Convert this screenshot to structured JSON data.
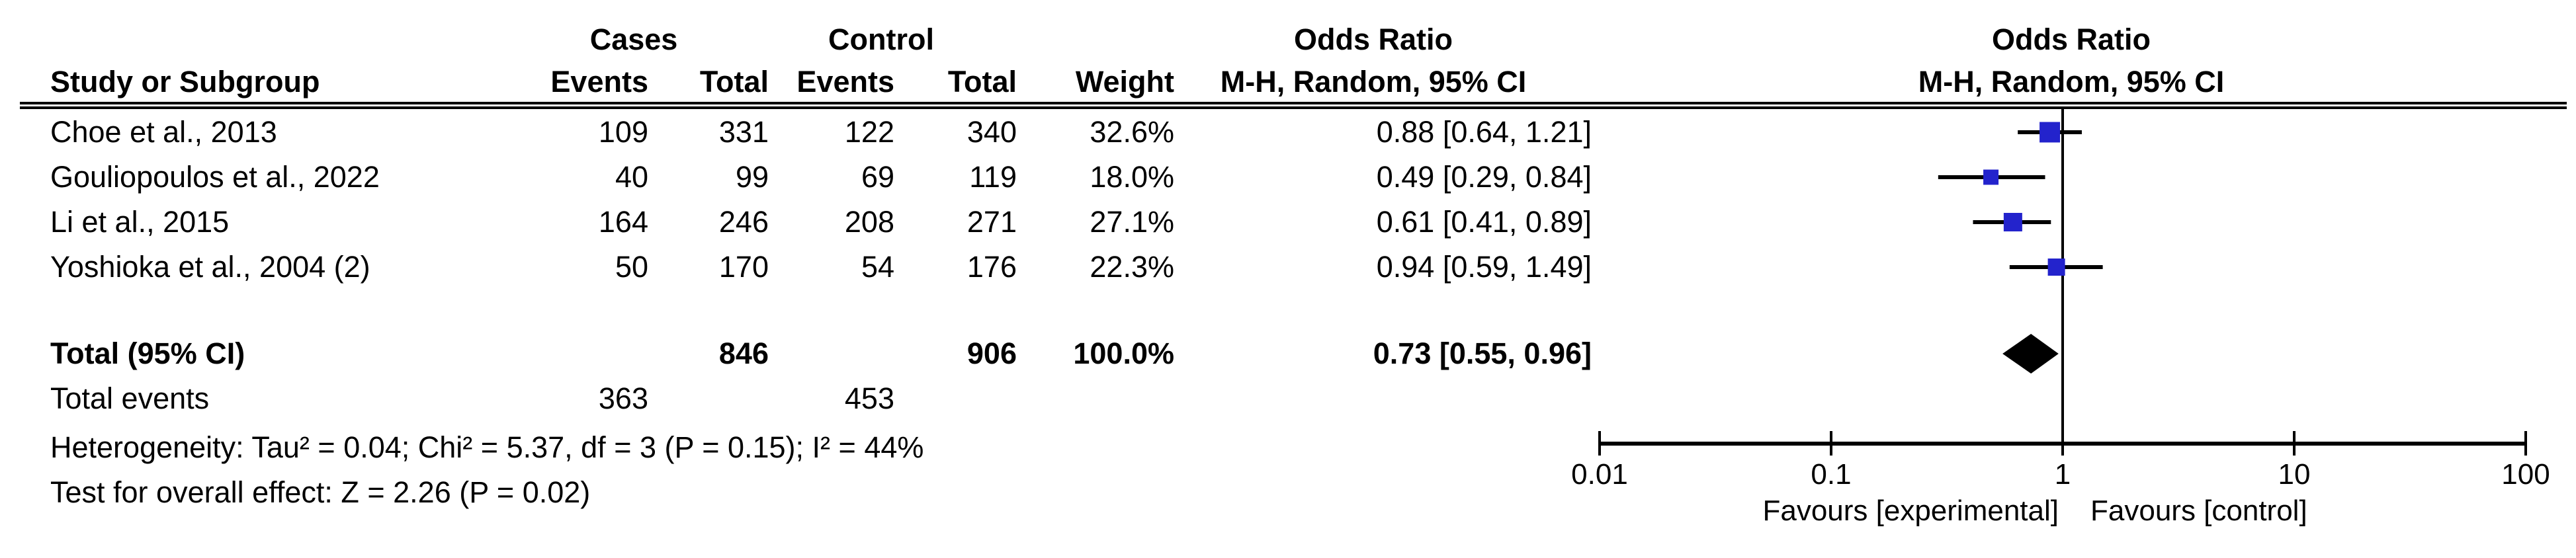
{
  "table": {
    "header": {
      "study": "Study or Subgroup",
      "group_cases": "Cases",
      "group_control": "Control",
      "odds_ratio_left": "Odds Ratio",
      "odds_ratio_right": "Odds Ratio",
      "events1": "Events",
      "total1": "Total",
      "events2": "Events",
      "total2": "Total",
      "weight": "Weight",
      "method_left": "M-H, Random, 95% CI",
      "method_right": "M-H, Random, 95% CI"
    },
    "rows": [
      {
        "study": "Choe et al., 2013",
        "e1": "109",
        "t1": "331",
        "e2": "122",
        "t2": "340",
        "weight": "32.6%",
        "ci": "0.88 [0.64, 1.21]"
      },
      {
        "study": "Gouliopoulos et al., 2022",
        "e1": "40",
        "t1": "99",
        "e2": "69",
        "t2": "119",
        "weight": "18.0%",
        "ci": "0.49 [0.29, 0.84]"
      },
      {
        "study": "Li et al., 2015",
        "e1": "164",
        "t1": "246",
        "e2": "208",
        "t2": "271",
        "weight": "27.1%",
        "ci": "0.61 [0.41, 0.89]"
      },
      {
        "study": "Yoshioka et al., 2004 (2)",
        "e1": "50",
        "t1": "170",
        "e2": "54",
        "t2": "176",
        "weight": "22.3%",
        "ci": "0.94 [0.59, 1.49]"
      }
    ],
    "total_row": {
      "label": "Total (95% CI)",
      "t1": "846",
      "t2": "906",
      "weight": "100.0%",
      "ci": "0.73 [0.55, 0.96]"
    },
    "total_events_row": {
      "label": "Total events",
      "e1": "363",
      "e2": "453"
    },
    "heterogeneity": "Heterogeneity: Tau² = 0.04; Chi² = 5.37, df = 3 (P = 0.15); I² = 44%",
    "overall_effect": "Test for overall effect: Z = 2.26 (P = 0.02)"
  },
  "plot": {
    "marker_color": "#2323cc",
    "line_color": "#000000",
    "diamond_color": "#000000",
    "favours_left": "Favours [experimental]",
    "favours_right": "Favours [control]"
  },
  "chart_data": {
    "type": "forest",
    "effect_measure": "Odds Ratio",
    "method": "M-H, Random, 95% CI",
    "x_scale": "log10",
    "x_tick_labels": [
      "0.01",
      "0.1",
      "1",
      "10",
      "100"
    ],
    "x_ticks": [
      0.01,
      0.1,
      1,
      10,
      100
    ],
    "null_line": 1,
    "studies": [
      {
        "name": "Choe et al., 2013",
        "cases_events": 109,
        "cases_total": 331,
        "control_events": 122,
        "control_total": 340,
        "weight_pct": 32.6,
        "or": 0.88,
        "ci_low": 0.64,
        "ci_high": 1.21
      },
      {
        "name": "Gouliopoulos et al., 2022",
        "cases_events": 40,
        "cases_total": 99,
        "control_events": 69,
        "control_total": 119,
        "weight_pct": 18.0,
        "or": 0.49,
        "ci_low": 0.29,
        "ci_high": 0.84
      },
      {
        "name": "Li et al., 2015",
        "cases_events": 164,
        "cases_total": 246,
        "control_events": 208,
        "control_total": 271,
        "weight_pct": 27.1,
        "or": 0.61,
        "ci_low": 0.41,
        "ci_high": 0.89
      },
      {
        "name": "Yoshioka et al., 2004 (2)",
        "cases_events": 50,
        "cases_total": 170,
        "control_events": 54,
        "control_total": 176,
        "weight_pct": 22.3,
        "or": 0.94,
        "ci_low": 0.59,
        "ci_high": 1.49
      }
    ],
    "pooled": {
      "name": "Total (95% CI)",
      "cases_total": 846,
      "control_total": 906,
      "weight_pct": 100.0,
      "or": 0.73,
      "ci_low": 0.55,
      "ci_high": 0.96
    },
    "total_events": {
      "cases": 363,
      "control": 453
    },
    "heterogeneity": {
      "tau2": 0.04,
      "chi2": 5.37,
      "df": 3,
      "p": 0.15,
      "i2_pct": 44
    },
    "overall_effect": {
      "z": 2.26,
      "p": 0.02
    },
    "favours_left": "Favours [experimental]",
    "favours_right": "Favours [control]"
  }
}
